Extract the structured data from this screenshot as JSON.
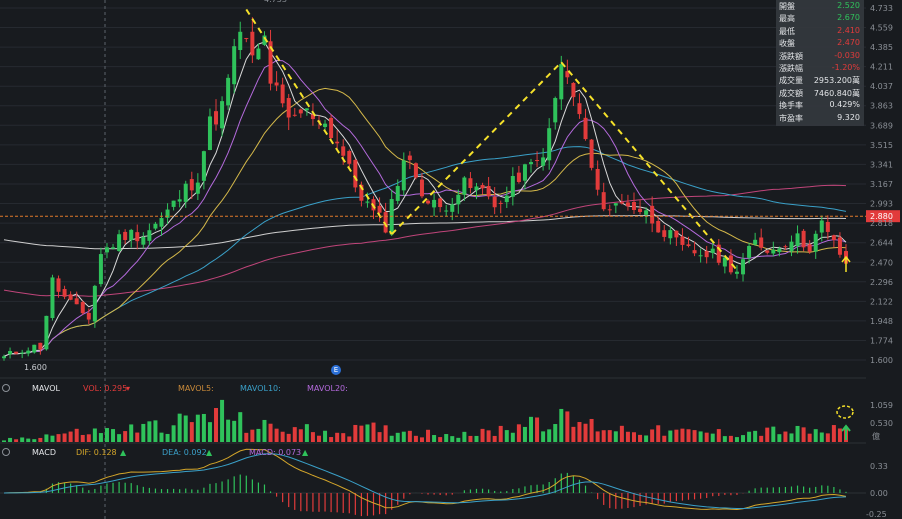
{
  "colors": {
    "up": "#e23b3b",
    "down": "#2fc25b",
    "ma5": "#d9d9d9",
    "ma10": "#d4b84a",
    "ma20": "#b46adc",
    "ma60": "#3aa0c8",
    "ma120": "#c0457a",
    "ma250": "#cfcfcf",
    "dashed": "#f5e12a",
    "arrow": "#f5e12a",
    "background": "#181b1f"
  },
  "main_chart": {
    "y_axis_labels": [
      "4.733",
      "4.559",
      "4.385",
      "4.211",
      "4.037",
      "3.863",
      "3.689",
      "3.515",
      "3.341",
      "3.167",
      "2.993",
      "2.818",
      "2.644",
      "2.470",
      "2.296",
      "2.122",
      "1.948",
      "1.774",
      "1.600"
    ],
    "ymin": 1.6,
    "ymax": 4.733,
    "current_price_tag": "2.880",
    "low_marker": "1.600",
    "high_marker": "4.733",
    "event_badge": "E"
  },
  "info_panel": {
    "rows": [
      {
        "label": "開盤",
        "value": "2.520",
        "color": "#2fc25b"
      },
      {
        "label": "最高",
        "value": "2.670",
        "color": "#2fc25b"
      },
      {
        "label": "最低",
        "value": "2.410",
        "color": "#e23b3b"
      },
      {
        "label": "收盤",
        "value": "2.470",
        "color": "#e23b3b"
      },
      {
        "label": "漲跌額",
        "value": "-0.030",
        "color": "#e23b3b"
      },
      {
        "label": "漲跌幅",
        "value": "-1.20%",
        "color": "#e23b3b"
      },
      {
        "label": "成交量",
        "value": "2953.200萬",
        "color": "#e4e6e9"
      },
      {
        "label": "成交額",
        "value": "7460.840萬",
        "color": "#e4e6e9"
      },
      {
        "label": "換手率",
        "value": "0.429%",
        "color": "#e4e6e9"
      },
      {
        "label": "市盈率",
        "value": "9.320",
        "color": "#e4e6e9"
      }
    ]
  },
  "volume_panel": {
    "name": "MAVOL",
    "vol_label": "VOL: 0.295",
    "ma5_label": "MAVOL5:",
    "ma10_label": "MAVOL10:",
    "ma20_label": "MAVOL20:",
    "y_axis_labels": [
      "1.059",
      "0.530"
    ],
    "unit_label": "億",
    "ymax": 1.1
  },
  "macd_panel": {
    "name": "MACD",
    "dif_label": "DIF: 0.128",
    "dea_label": "DEA: 0.092",
    "macd_label": "MACD: 0.073",
    "y_axis_labels": [
      "0.33",
      "0.00",
      "-0.25"
    ],
    "ymin": -0.27,
    "ymax": 0.38
  },
  "chart_data": {
    "type": "candlestick",
    "bars": 140,
    "anchors": [
      [
        0,
        1.62
      ],
      [
        3,
        1.7
      ],
      [
        6,
        1.72
      ],
      [
        8,
        2.3
      ],
      [
        10,
        2.15
      ],
      [
        12,
        2.05
      ],
      [
        14,
        1.98
      ],
      [
        16,
        2.55
      ],
      [
        20,
        2.72
      ],
      [
        23,
        2.72
      ],
      [
        26,
        2.85
      ],
      [
        29,
        3.05
      ],
      [
        32,
        3.25
      ],
      [
        34,
        3.7
      ],
      [
        36,
        3.85
      ],
      [
        39,
        4.55
      ],
      [
        41,
        4.25
      ],
      [
        43,
        4.45
      ],
      [
        44,
        4.1
      ],
      [
        47,
        3.7
      ],
      [
        49,
        3.8
      ],
      [
        52,
        3.78
      ],
      [
        55,
        3.55
      ],
      [
        58,
        3.15
      ],
      [
        61,
        2.9
      ],
      [
        63,
        2.8
      ],
      [
        66,
        3.4
      ],
      [
        68,
        3.25
      ],
      [
        70,
        3.0
      ],
      [
        72,
        2.95
      ],
      [
        74,
        3.05
      ],
      [
        76,
        3.15
      ],
      [
        79,
        3.1
      ],
      [
        82,
        2.98
      ],
      [
        85,
        3.25
      ],
      [
        88,
        3.35
      ],
      [
        90,
        3.6
      ],
      [
        92,
        4.22
      ],
      [
        94,
        3.95
      ],
      [
        96,
        3.55
      ],
      [
        98,
        3.05
      ],
      [
        100,
        2.96
      ],
      [
        103,
        3.0
      ],
      [
        106,
        2.9
      ],
      [
        109,
        2.75
      ],
      [
        112,
        2.58
      ],
      [
        115,
        2.55
      ],
      [
        118,
        2.52
      ],
      [
        121,
        2.4
      ],
      [
        124,
        2.64
      ],
      [
        127,
        2.58
      ],
      [
        130,
        2.7
      ],
      [
        133,
        2.62
      ],
      [
        135,
        2.8
      ],
      [
        137,
        2.63
      ],
      [
        139,
        2.47
      ]
    ],
    "volume_anchors": [
      [
        0,
        0.05
      ],
      [
        10,
        0.22
      ],
      [
        20,
        0.3
      ],
      [
        30,
        0.5
      ],
      [
        36,
        0.75
      ],
      [
        40,
        0.4
      ],
      [
        45,
        0.35
      ],
      [
        50,
        0.3
      ],
      [
        55,
        0.25
      ],
      [
        60,
        0.32
      ],
      [
        65,
        0.3
      ],
      [
        70,
        0.22
      ],
      [
        80,
        0.22
      ],
      [
        88,
        0.6
      ],
      [
        92,
        0.55
      ],
      [
        96,
        0.45
      ],
      [
        100,
        0.35
      ],
      [
        110,
        0.25
      ],
      [
        120,
        0.22
      ],
      [
        128,
        0.28
      ],
      [
        135,
        0.25
      ],
      [
        139,
        0.3
      ]
    ],
    "trend_lines": [
      [
        [
          40,
          4.72
        ],
        [
          64,
          2.72
        ]
      ],
      [
        [
          64,
          2.72
        ],
        [
          92,
          4.25
        ]
      ],
      [
        [
          92,
          4.25
        ],
        [
          121,
          2.4
        ]
      ]
    ],
    "series": [
      "MA5",
      "MA10",
      "MA20",
      "MA60",
      "MA120",
      "MA250"
    ]
  }
}
